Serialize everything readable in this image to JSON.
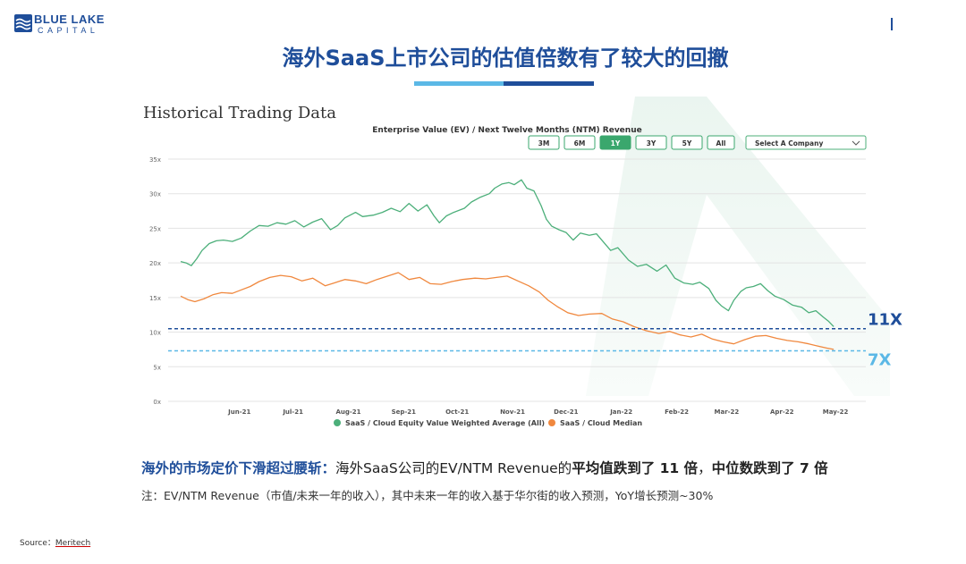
{
  "logo": {
    "line1": "BLUE LAKE",
    "line2": "CAPITAL",
    "brand_color": "#1f4e9a"
  },
  "title": "海外SaaS上市公司的估值倍数有了较大的回撤",
  "panel": {
    "heading": "Historical Trading Data",
    "chart_title": "Enterprise Value (EV) / Next Twelve Months (NTM) Revenue",
    "range_buttons": [
      {
        "label": "3M",
        "active": false
      },
      {
        "label": "6M",
        "active": false
      },
      {
        "label": "1Y",
        "active": true
      },
      {
        "label": "3Y",
        "active": false
      },
      {
        "label": "5Y",
        "active": false
      },
      {
        "label": "All",
        "active": false
      }
    ],
    "select": {
      "label": "Select A Company"
    }
  },
  "chart_data": {
    "type": "line",
    "title": "Enterprise Value (EV) / Next Twelve Months (NTM) Revenue",
    "xlabel": "",
    "ylabel": "",
    "x_ticks": [
      "Jun-21",
      "Jul-21",
      "Aug-21",
      "Sep-21",
      "Oct-21",
      "Nov-21",
      "Dec-21",
      "Jan-22",
      "Feb-22",
      "Mar-22",
      "Apr-22",
      "May-22"
    ],
    "y_ticks": [
      "0x",
      "5x",
      "10x",
      "15x",
      "20x",
      "25x",
      "30x",
      "35x"
    ],
    "ylim": [
      0,
      35
    ],
    "grid": true,
    "legend": "bottom",
    "series": [
      {
        "name": "SaaS / Cloud Equity Value Weighted Average (All)",
        "color": "#4caf7a",
        "points": [
          [
            "2021-05-12",
            20.2
          ],
          [
            "2021-05-15",
            20.0
          ],
          [
            "2021-05-18",
            19.6
          ],
          [
            "2021-05-21",
            20.6
          ],
          [
            "2021-05-24",
            21.8
          ],
          [
            "2021-05-28",
            22.8
          ],
          [
            "2021-06-01",
            23.2
          ],
          [
            "2021-06-05",
            23.3
          ],
          [
            "2021-06-10",
            23.1
          ],
          [
            "2021-06-15",
            23.6
          ],
          [
            "2021-06-20",
            24.6
          ],
          [
            "2021-06-25",
            25.4
          ],
          [
            "2021-06-30",
            25.3
          ],
          [
            "2021-07-05",
            25.8
          ],
          [
            "2021-07-10",
            25.6
          ],
          [
            "2021-07-15",
            26.1
          ],
          [
            "2021-07-20",
            25.2
          ],
          [
            "2021-07-25",
            25.9
          ],
          [
            "2021-07-30",
            26.4
          ],
          [
            "2021-08-04",
            24.8
          ],
          [
            "2021-08-08",
            25.4
          ],
          [
            "2021-08-12",
            26.5
          ],
          [
            "2021-08-18",
            27.3
          ],
          [
            "2021-08-22",
            26.7
          ],
          [
            "2021-08-28",
            26.9
          ],
          [
            "2021-09-02",
            27.3
          ],
          [
            "2021-09-07",
            27.9
          ],
          [
            "2021-09-12",
            27.4
          ],
          [
            "2021-09-17",
            28.6
          ],
          [
            "2021-09-22",
            27.5
          ],
          [
            "2021-09-27",
            28.4
          ],
          [
            "2021-10-01",
            26.8
          ],
          [
            "2021-10-04",
            25.8
          ],
          [
            "2021-10-08",
            26.8
          ],
          [
            "2021-10-12",
            27.3
          ],
          [
            "2021-10-18",
            27.9
          ],
          [
            "2021-10-22",
            28.8
          ],
          [
            "2021-10-27",
            29.5
          ],
          [
            "2021-11-01",
            30.0
          ],
          [
            "2021-11-04",
            30.8
          ],
          [
            "2021-11-08",
            31.4
          ],
          [
            "2021-11-12",
            31.6
          ],
          [
            "2021-11-15",
            31.3
          ],
          [
            "2021-11-19",
            32.0
          ],
          [
            "2021-11-22",
            30.8
          ],
          [
            "2021-11-26",
            30.4
          ],
          [
            "2021-11-30",
            28.3
          ],
          [
            "2021-12-03",
            26.3
          ],
          [
            "2021-12-06",
            25.3
          ],
          [
            "2021-12-10",
            24.8
          ],
          [
            "2021-12-14",
            24.4
          ],
          [
            "2021-12-18",
            23.3
          ],
          [
            "2021-12-22",
            24.3
          ],
          [
            "2021-12-27",
            24.0
          ],
          [
            "2021-12-31",
            24.2
          ],
          [
            "2022-01-04",
            23.0
          ],
          [
            "2022-01-08",
            21.8
          ],
          [
            "2022-01-12",
            22.2
          ],
          [
            "2022-01-18",
            20.4
          ],
          [
            "2022-01-23",
            19.5
          ],
          [
            "2022-01-28",
            19.8
          ],
          [
            "2022-02-03",
            18.8
          ],
          [
            "2022-02-08",
            19.7
          ],
          [
            "2022-02-13",
            17.8
          ],
          [
            "2022-02-18",
            17.1
          ],
          [
            "2022-02-23",
            16.9
          ],
          [
            "2022-02-27",
            17.2
          ],
          [
            "2022-03-04",
            16.3
          ],
          [
            "2022-03-08",
            14.6
          ],
          [
            "2022-03-11",
            13.8
          ],
          [
            "2022-03-15",
            13.1
          ],
          [
            "2022-03-18",
            14.6
          ],
          [
            "2022-03-22",
            15.9
          ],
          [
            "2022-03-25",
            16.4
          ],
          [
            "2022-03-29",
            16.6
          ],
          [
            "2022-04-02",
            17.0
          ],
          [
            "2022-04-06",
            16.0
          ],
          [
            "2022-04-10",
            15.2
          ],
          [
            "2022-04-15",
            14.7
          ],
          [
            "2022-04-20",
            13.9
          ],
          [
            "2022-04-25",
            13.6
          ],
          [
            "2022-04-29",
            12.8
          ],
          [
            "2022-05-03",
            13.1
          ],
          [
            "2022-05-07",
            12.2
          ],
          [
            "2022-05-10",
            11.6
          ],
          [
            "2022-05-13",
            10.8
          ]
        ]
      },
      {
        "name": "SaaS / Cloud Median",
        "color": "#f0883e",
        "points": [
          [
            "2021-05-12",
            15.2
          ],
          [
            "2021-05-16",
            14.7
          ],
          [
            "2021-05-20",
            14.4
          ],
          [
            "2021-05-25",
            14.8
          ],
          [
            "2021-05-30",
            15.4
          ],
          [
            "2021-06-04",
            15.7
          ],
          [
            "2021-06-10",
            15.6
          ],
          [
            "2021-06-15",
            16.1
          ],
          [
            "2021-06-20",
            16.6
          ],
          [
            "2021-06-25",
            17.3
          ],
          [
            "2021-07-01",
            17.9
          ],
          [
            "2021-07-07",
            18.2
          ],
          [
            "2021-07-13",
            18.0
          ],
          [
            "2021-07-19",
            17.4
          ],
          [
            "2021-07-25",
            17.8
          ],
          [
            "2021-08-01",
            16.7
          ],
          [
            "2021-08-06",
            17.1
          ],
          [
            "2021-08-12",
            17.6
          ],
          [
            "2021-08-18",
            17.4
          ],
          [
            "2021-08-24",
            17.0
          ],
          [
            "2021-08-30",
            17.6
          ],
          [
            "2021-09-05",
            18.1
          ],
          [
            "2021-09-11",
            18.6
          ],
          [
            "2021-09-17",
            17.6
          ],
          [
            "2021-09-23",
            17.9
          ],
          [
            "2021-09-29",
            17.0
          ],
          [
            "2021-10-05",
            16.9
          ],
          [
            "2021-10-11",
            17.3
          ],
          [
            "2021-10-17",
            17.6
          ],
          [
            "2021-10-24",
            17.8
          ],
          [
            "2021-10-30",
            17.7
          ],
          [
            "2021-11-05",
            17.9
          ],
          [
            "2021-11-11",
            18.1
          ],
          [
            "2021-11-17",
            17.4
          ],
          [
            "2021-11-23",
            16.7
          ],
          [
            "2021-11-29",
            15.8
          ],
          [
            "2021-12-04",
            14.6
          ],
          [
            "2021-12-09",
            13.7
          ],
          [
            "2021-12-15",
            12.8
          ],
          [
            "2021-12-21",
            12.4
          ],
          [
            "2021-12-27",
            12.6
          ],
          [
            "2022-01-03",
            12.7
          ],
          [
            "2022-01-09",
            11.9
          ],
          [
            "2022-01-15",
            11.5
          ],
          [
            "2022-01-21",
            10.8
          ],
          [
            "2022-01-28",
            10.2
          ],
          [
            "2022-02-04",
            9.8
          ],
          [
            "2022-02-10",
            10.1
          ],
          [
            "2022-02-16",
            9.6
          ],
          [
            "2022-02-22",
            9.3
          ],
          [
            "2022-02-28",
            9.7
          ],
          [
            "2022-03-06",
            9.0
          ],
          [
            "2022-03-12",
            8.6
          ],
          [
            "2022-03-18",
            8.3
          ],
          [
            "2022-03-24",
            8.9
          ],
          [
            "2022-03-30",
            9.4
          ],
          [
            "2022-04-05",
            9.5
          ],
          [
            "2022-04-11",
            9.1
          ],
          [
            "2022-04-17",
            8.8
          ],
          [
            "2022-04-23",
            8.6
          ],
          [
            "2022-04-29",
            8.3
          ],
          [
            "2022-05-04",
            8.0
          ],
          [
            "2022-05-09",
            7.7
          ],
          [
            "2022-05-13",
            7.5
          ]
        ]
      }
    ],
    "reference_lines": [
      {
        "value": 10.5,
        "label": "11X",
        "color": "#1f4e9a"
      },
      {
        "value": 7.3,
        "label": "7X",
        "color": "#5bb8e6"
      }
    ]
  },
  "summary": {
    "lead": "海外的市场定价下滑超过腰斩：",
    "text1": "海外SaaS公司的EV/NTM Revenue的",
    "bold1": "平均值跌到了 11 倍",
    "sep": "，",
    "bold2": "中位数跌到了 7 倍"
  },
  "note": "注：EV/NTM Revenue（市值/未来一年的收入），其中未来一年的收入基于华尔街的收入预测，YoY增长预测~30%",
  "source": {
    "label": "Source：",
    "name": "Meritech"
  }
}
